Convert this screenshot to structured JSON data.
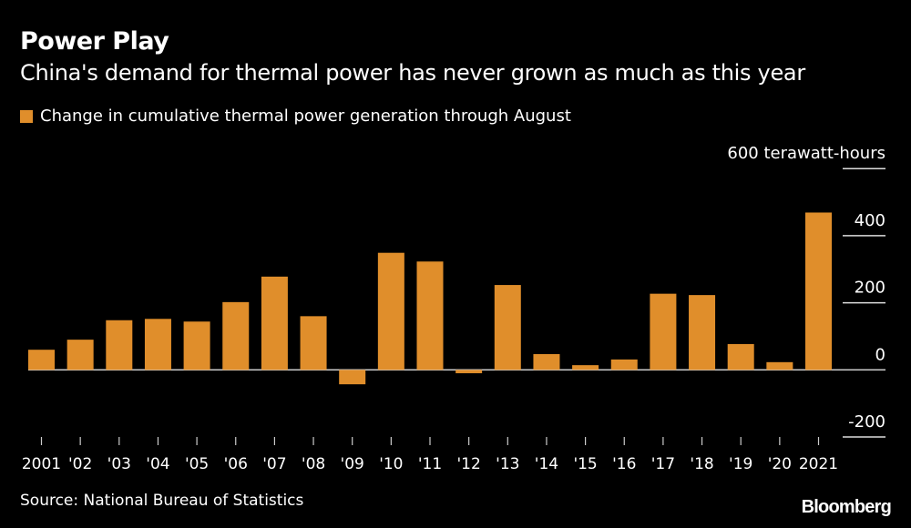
{
  "chart_data": {
    "type": "bar",
    "title": "Power Play",
    "subtitle": "China's demand for thermal power has never grown as much as this year",
    "legend": [
      {
        "name": "Change in cumulative thermal power generation through August",
        "color": "#E08E2B"
      }
    ],
    "legend_placement": "top-left",
    "unit_label": "600 terawatt-hours",
    "categories": [
      "2001",
      "'02",
      "'03",
      "'04",
      "'05",
      "'06",
      "'07",
      "'08",
      "'09",
      "'10",
      "'11",
      "'12",
      "'13",
      "'14",
      "'15",
      "'16",
      "'17",
      "'18",
      "'19",
      "'20",
      "2021"
    ],
    "values": [
      60,
      90,
      148,
      152,
      144,
      202,
      278,
      160,
      -43,
      349,
      323,
      -10,
      253,
      47,
      14,
      31,
      227,
      223,
      77,
      23,
      469
    ],
    "y_ticks": [
      600,
      400,
      200,
      0,
      -200
    ],
    "y_tick_labels": [
      "600 terawatt-hours",
      "400",
      "200",
      "0",
      "-200"
    ],
    "ylim": [
      -200,
      600
    ],
    "y_axis_side": "right",
    "grid": true,
    "bar_color": "#E08E2B"
  },
  "source": "Source: National Bureau of Statistics",
  "logo": "Bloomberg"
}
